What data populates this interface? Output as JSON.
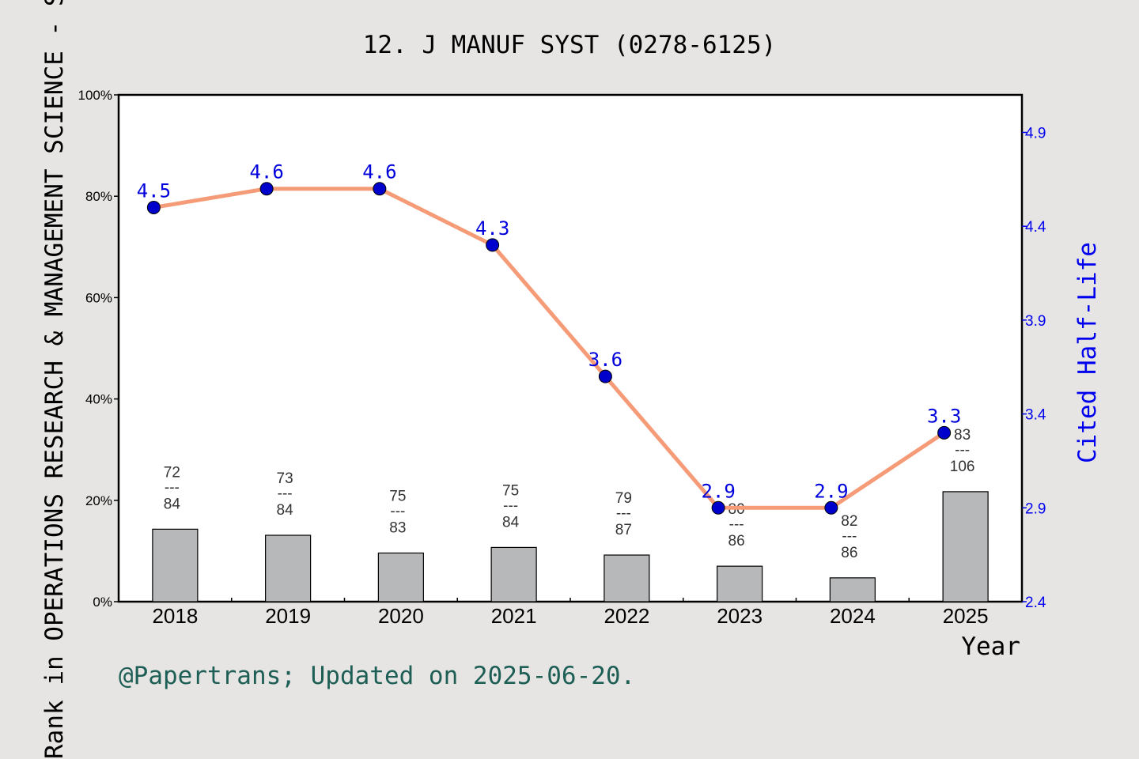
{
  "chart_data": {
    "type": "bar",
    "title": "12. J MANUF SYST (0278-6125)",
    "xlabel": "Year",
    "ylabel_left": "Rank in OPERATIONS RESEARCH & MANAGEMENT SCIENCE - SCIE",
    "ylabel_right": "Cited Half-Life",
    "categories": [
      "2018",
      "2019",
      "2020",
      "2021",
      "2022",
      "2023",
      "2024",
      "2025"
    ],
    "ylim_left": [
      0,
      100
    ],
    "yticks_left": [
      "0%",
      "20%",
      "40%",
      "60%",
      "80%",
      "100%"
    ],
    "ylim_right": [
      2.4,
      5.1
    ],
    "yticks_right": [
      "2.4",
      "2.9",
      "3.4",
      "3.9",
      "4.4",
      "4.9"
    ],
    "series": [
      {
        "type": "bar",
        "values": [
          14.3,
          13.1,
          9.6,
          10.7,
          9.2,
          7.0,
          4.7,
          21.7
        ],
        "rank": [
          "72",
          "73",
          "75",
          "75",
          "79",
          "80",
          "82",
          "83"
        ],
        "total": [
          "84",
          "84",
          "83",
          "84",
          "87",
          "86",
          "86",
          "106"
        ],
        "color": "#b7b8b9"
      },
      {
        "type": "line",
        "axis": "right",
        "values": [
          4.5,
          4.6,
          4.6,
          4.3,
          3.6,
          2.9,
          2.9,
          3.3
        ],
        "labels": [
          "4.5",
          "4.6",
          "4.6",
          "4.3",
          "3.6",
          "2.9",
          "2.9",
          "3.3"
        ],
        "line_color": "#f59b78",
        "marker_color": "#0000cc"
      }
    ],
    "grid": false,
    "fraction_separator": "---"
  },
  "footer": "@Papertrans; Updated on 2025-06-20.",
  "colors": {
    "background": "#e6e5e4",
    "plot_background": "#ffffff",
    "right_axis": "#0000ee",
    "footer": "#1d5e55"
  }
}
